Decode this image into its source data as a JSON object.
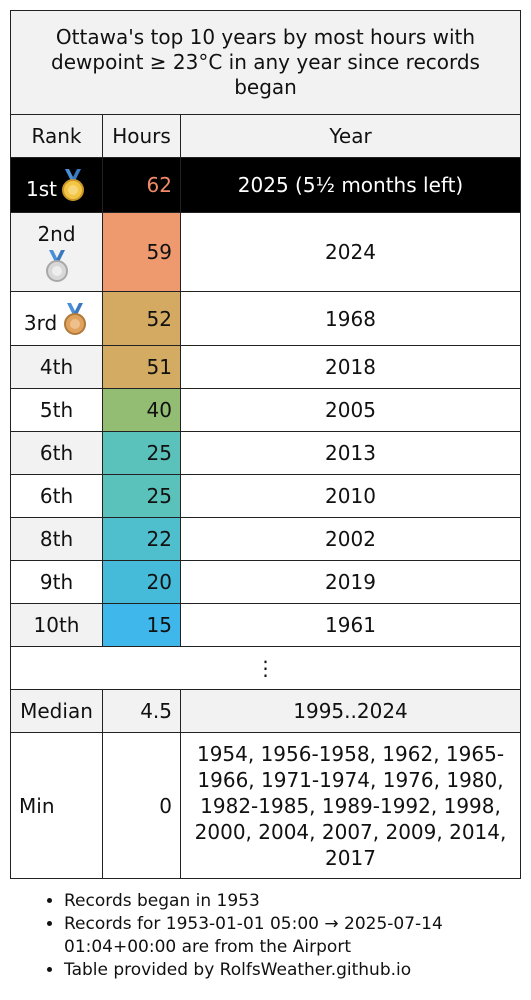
{
  "title": "Ottawa's top 10 years by most hours with dewpoint ≥ 23°C in any year since records began",
  "header": {
    "rank": "Rank",
    "hours": "Hours",
    "year": "Year"
  },
  "rows": [
    {
      "rank": "1st",
      "hours": "62",
      "year": "2025 (5½ months left)",
      "medal": "gold-medal-icon",
      "color": "#000000"
    },
    {
      "rank": "2nd",
      "hours": "59",
      "year": "2024",
      "medal": "silver-medal-icon",
      "color": "#ef9a6e"
    },
    {
      "rank": "3rd",
      "hours": "52",
      "year": "1968",
      "medal": "bronze-medal-icon",
      "color": "#d4aa62"
    },
    {
      "rank": "4th",
      "hours": "51",
      "year": "2018",
      "color": "#d3ab63"
    },
    {
      "rank": "5th",
      "hours": "40",
      "year": "2005",
      "color": "#93bd72"
    },
    {
      "rank": "6th",
      "hours": "25",
      "year": "2013",
      "color": "#5bc1bb"
    },
    {
      "rank": "6th",
      "hours": "25",
      "year": "2010",
      "color": "#5bc1bb"
    },
    {
      "rank": "8th",
      "hours": "22",
      "year": "2002",
      "color": "#4fbfcd"
    },
    {
      "rank": "9th",
      "hours": "20",
      "year": "2019",
      "color": "#46bbd9"
    },
    {
      "rank": "10th",
      "hours": "15",
      "year": "1961",
      "color": "#3fb7ea"
    }
  ],
  "ellipsis": "⋮",
  "median": {
    "label": "Median",
    "hours": "4.5",
    "year": "1995..2024"
  },
  "min": {
    "label": "Min",
    "hours": "0",
    "year": "1954, 1956-1958, 1962, 1965-1966, 1971-1974, 1976, 1980, 1982-1985, 1989-1992, 1998, 2000, 2004, 2007, 2009, 2014, 2017"
  },
  "notes": [
    "Records began in 1953",
    "Records for 1953-01-01 05:00 → 2025-07-14 01:04+00:00 are from the Airport",
    "Table provided by RolfsWeather.github.io"
  ]
}
